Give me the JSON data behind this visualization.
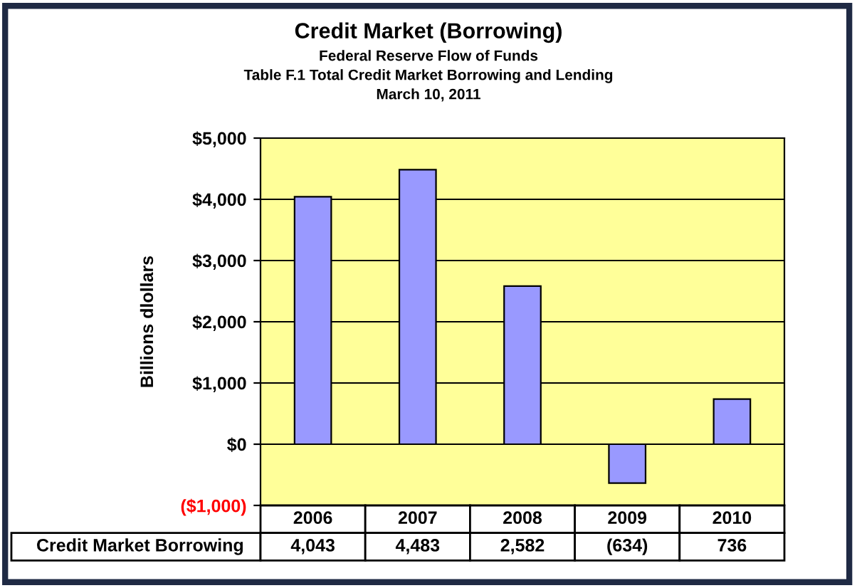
{
  "chart_data": {
    "type": "bar",
    "title": "Credit Market (Borrowing)",
    "subtitle": "Federal Reserve Flow of Funds\nTable F.1 Total Credit Market Borrowing and Lending\nMarch 10, 2011",
    "ylabel": "Billions dlollars",
    "categories": [
      "2006",
      "2007",
      "2008",
      "2009",
      "2010"
    ],
    "series": [
      {
        "name": "Credit Market Borrowing",
        "color": "#9999ff",
        "values": [
          4043,
          4483,
          2582,
          -634,
          736
        ],
        "value_labels": [
          "4,043",
          "4,483",
          "2,582",
          "(634)",
          "736"
        ]
      }
    ],
    "ylim": [
      -1000,
      5000
    ],
    "yticks": [
      {
        "value": -1000,
        "label": "($1,000)"
      },
      {
        "value": 0,
        "label": "$0"
      },
      {
        "value": 1000,
        "label": "$1,000"
      },
      {
        "value": 2000,
        "label": "$2,000"
      },
      {
        "value": 3000,
        "label": "$3,000"
      },
      {
        "value": 4000,
        "label": "$4,000"
      },
      {
        "value": 5000,
        "label": "$5,000"
      }
    ],
    "grid": "y",
    "legend": false
  }
}
